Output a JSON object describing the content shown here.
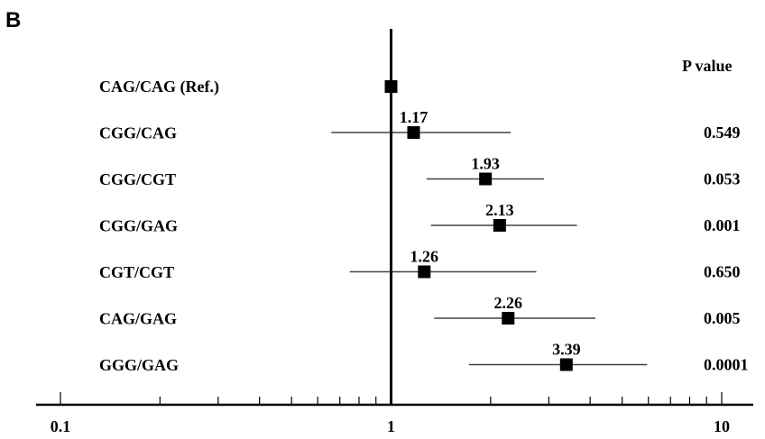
{
  "panel_label": "B",
  "chart_data": {
    "type": "forest",
    "x_scale": "log",
    "xlim": [
      0.1,
      10
    ],
    "reference_line": 1,
    "x_tick_labels": [
      {
        "value": 0.1,
        "label": "0.1"
      },
      {
        "value": 1,
        "label": "1"
      },
      {
        "value": 10,
        "label": "10"
      }
    ],
    "pvalue_header": "P  value",
    "rows": [
      {
        "label": "CAG/CAG (Ref.)",
        "estimate": 1.0,
        "estimate_label": "",
        "ci": null,
        "p_value": ""
      },
      {
        "label": "CGG/CAG",
        "estimate": 1.17,
        "estimate_label": "1.17",
        "ci": [
          0.66,
          2.3
        ],
        "p_value": "0.549"
      },
      {
        "label": "CGG/CGT",
        "estimate": 1.93,
        "estimate_label": "1.93",
        "ci": [
          1.28,
          2.9
        ],
        "p_value": "0.053"
      },
      {
        "label": "CGG/GAG",
        "estimate": 2.13,
        "estimate_label": "2.13",
        "ci": [
          1.32,
          3.65
        ],
        "p_value": "0.001"
      },
      {
        "label": "CGT/CGT",
        "estimate": 1.26,
        "estimate_label": "1.26",
        "ci": [
          0.75,
          2.75
        ],
        "p_value": "0.650"
      },
      {
        "label": "CAG/GAG",
        "estimate": 2.26,
        "estimate_label": "2.26",
        "ci": [
          1.35,
          4.15
        ],
        "p_value": "0.005"
      },
      {
        "label": "GGG/GAG",
        "estimate": 3.39,
        "estimate_label": "3.39",
        "ci": [
          1.72,
          5.95
        ],
        "p_value": "0.0001"
      }
    ]
  }
}
